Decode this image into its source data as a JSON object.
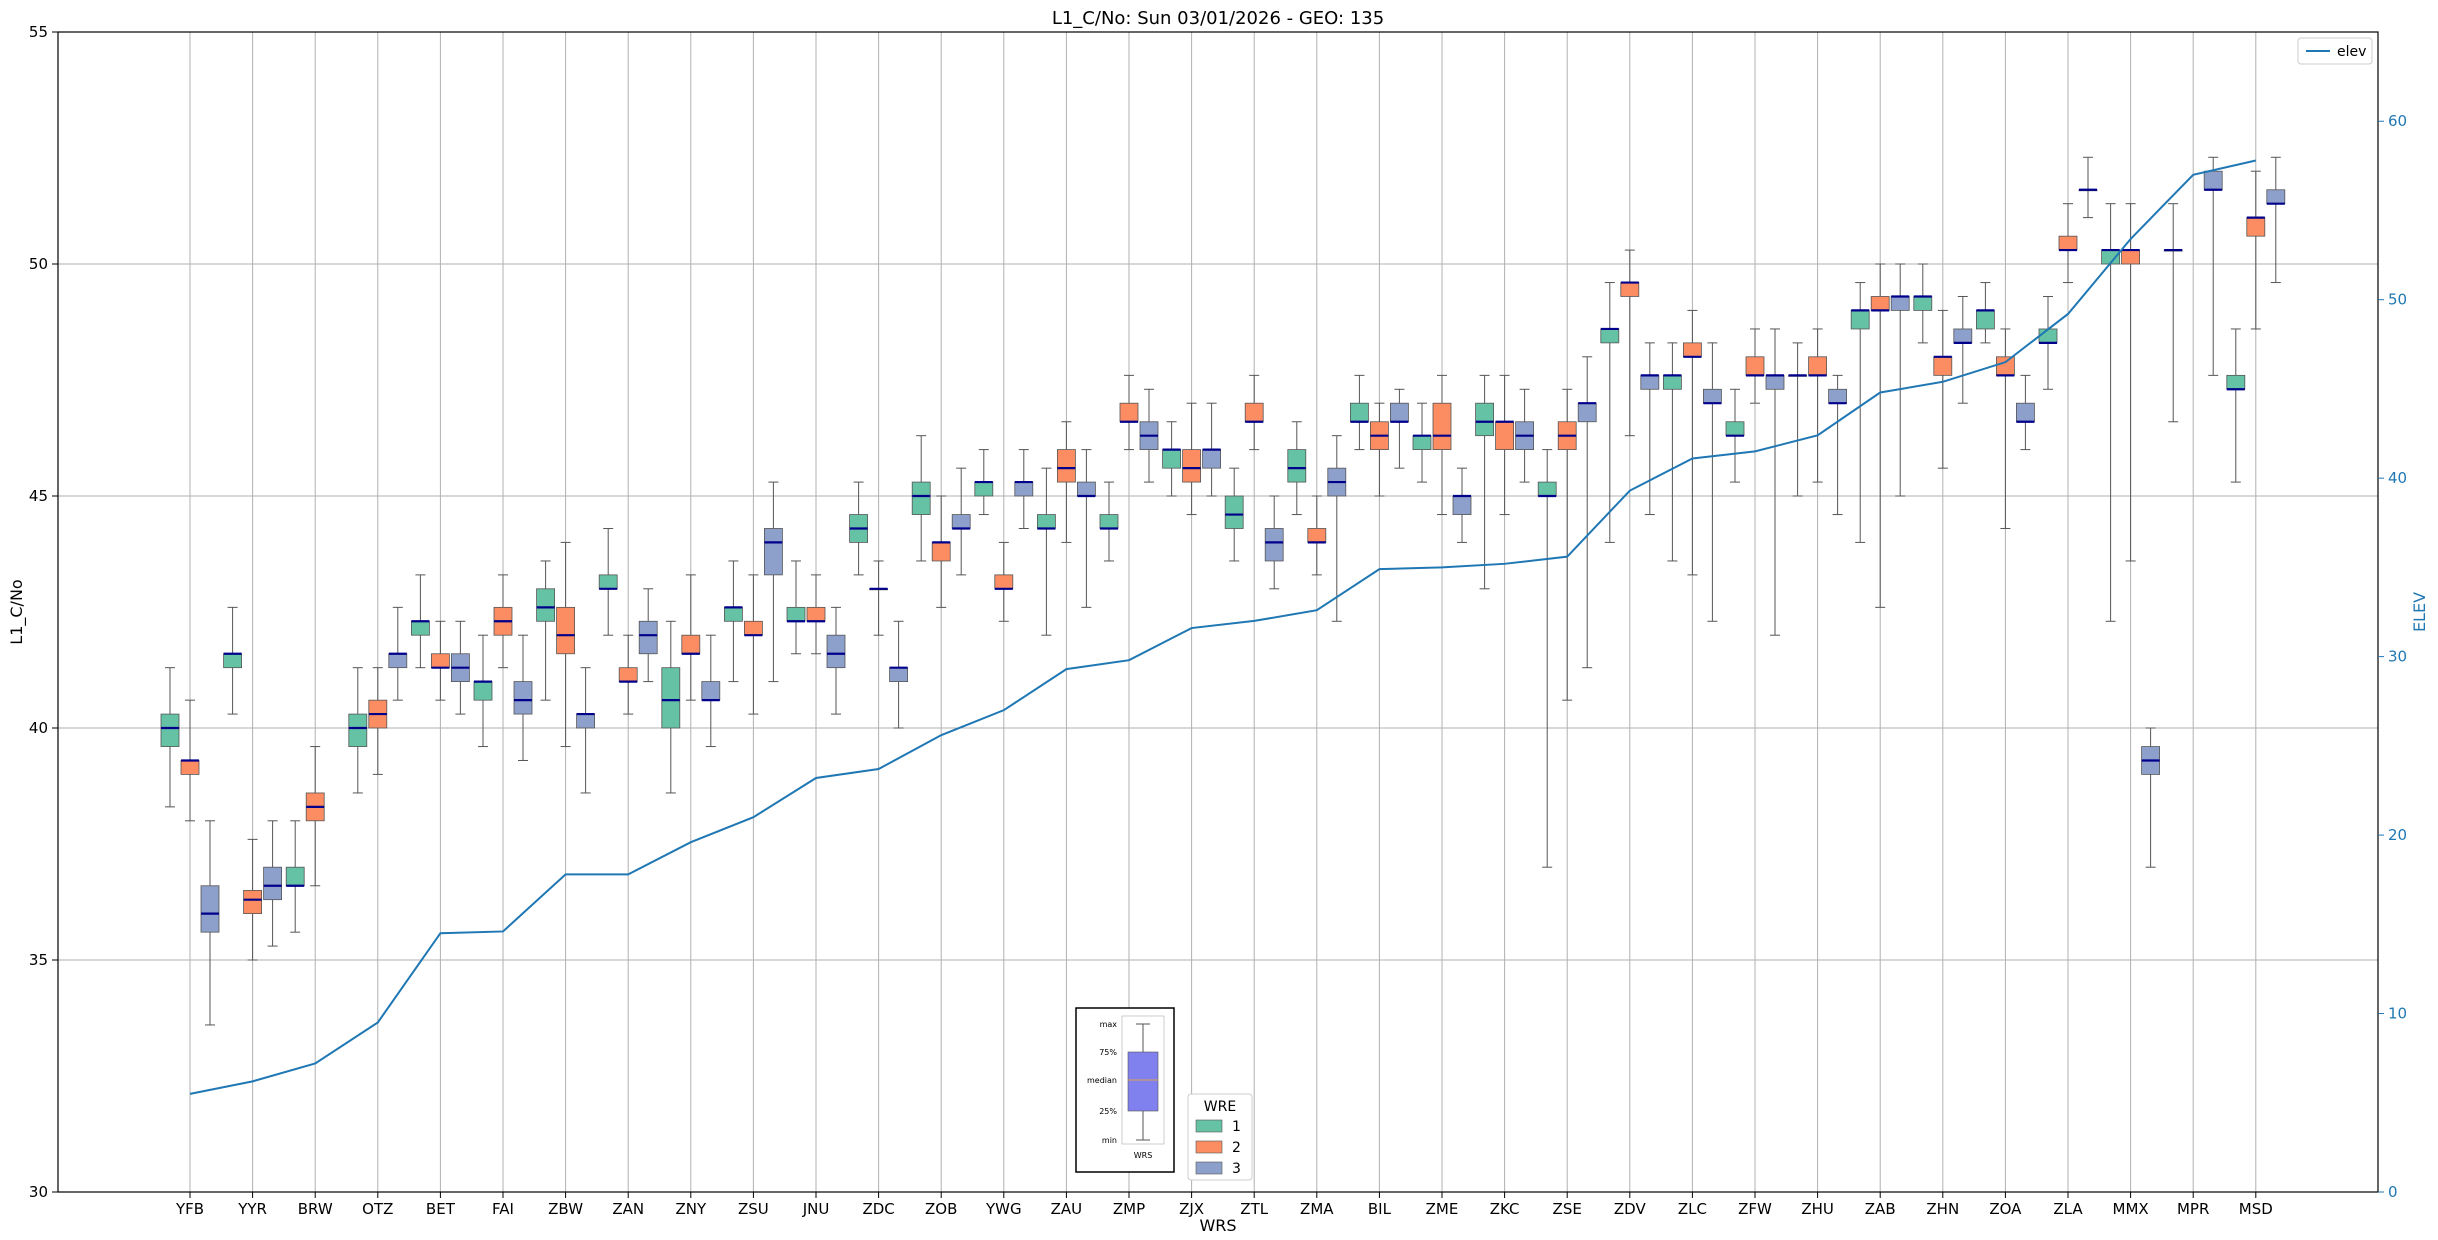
{
  "chart_data": {
    "type": "box",
    "title": "L1_C/No: Sun 03/01/2026 - GEO: 135",
    "xlabel": "WRS",
    "ylabel": "L1_C/No",
    "ylabel_right": "ELEV",
    "ylim": [
      30,
      55
    ],
    "ylim_right": [
      0,
      65
    ],
    "yticks": [
      30,
      35,
      40,
      45,
      50,
      55
    ],
    "yticks_right": [
      0,
      10,
      20,
      30,
      40,
      50,
      60
    ],
    "grid": true,
    "colors": {
      "1": "#66c2a5",
      "2": "#fc8d62",
      "3": "#8da0cb",
      "median": "#00008b",
      "elev": "#1f77b4"
    },
    "legend_line": {
      "label": "elev",
      "placement": "top-right"
    },
    "legend_boxes": {
      "title": "WRE",
      "entries": [
        "1",
        "2",
        "3"
      ],
      "placement": "lower-center"
    },
    "inset_labels": [
      "max",
      "75%",
      "median",
      "25%",
      "min",
      "WRS"
    ],
    "categories": [
      "YFB",
      "YYR",
      "BRW",
      "OTZ",
      "BET",
      "FAI",
      "ZBW",
      "ZAN",
      "ZNY",
      "ZSU",
      "JNU",
      "ZDC",
      "ZOB",
      "YWG",
      "ZAU",
      "ZMP",
      "ZJX",
      "ZTL",
      "ZMA",
      "BIL",
      "ZME",
      "ZKC",
      "ZSE",
      "ZDV",
      "ZLC",
      "ZFW",
      "ZHU",
      "ZAB",
      "ZHN",
      "ZOA",
      "ZLA",
      "MMX",
      "MPR",
      "MSD"
    ],
    "elev": [
      5.5,
      6.2,
      7.2,
      9.5,
      14.5,
      14.6,
      17.8,
      17.8,
      19.6,
      21.0,
      23.2,
      23.7,
      25.6,
      27.0,
      29.3,
      29.8,
      31.6,
      32.0,
      32.6,
      34.9,
      35.0,
      35.2,
      35.6,
      39.3,
      41.1,
      41.5,
      42.4,
      44.8,
      45.4,
      46.5,
      49.2,
      53.4,
      57.0,
      57.8
    ],
    "boxes": [
      {
        "station": "YFB",
        "wre": 1,
        "min": 38.3,
        "q1": 39.6,
        "median": 40.0,
        "q3": 40.3,
        "max": 41.3
      },
      {
        "station": "YFB",
        "wre": 2,
        "min": 38.0,
        "q1": 39.0,
        "median": 39.3,
        "q3": 39.3,
        "max": 40.6
      },
      {
        "station": "YFB",
        "wre": 3,
        "min": 33.6,
        "q1": 35.6,
        "median": 36.0,
        "q3": 36.6,
        "max": 38.0
      },
      {
        "station": "YYR",
        "wre": 1,
        "min": 40.3,
        "q1": 41.3,
        "median": 41.6,
        "q3": 41.6,
        "max": 42.6
      },
      {
        "station": "YYR",
        "wre": 2,
        "min": 35.0,
        "q1": 36.0,
        "median": 36.3,
        "q3": 36.5,
        "max": 37.6
      },
      {
        "station": "YYR",
        "wre": 3,
        "min": 35.3,
        "q1": 36.3,
        "median": 36.6,
        "q3": 37.0,
        "max": 38.0
      },
      {
        "station": "BRW",
        "wre": 1,
        "min": 35.6,
        "q1": 36.6,
        "median": 36.6,
        "q3": 37.0,
        "max": 38.0
      },
      {
        "station": "BRW",
        "wre": 2,
        "min": 36.6,
        "q1": 38.0,
        "median": 38.3,
        "q3": 38.6,
        "max": 39.6
      },
      {
        "station": "OTZ",
        "wre": 1,
        "min": 38.6,
        "q1": 39.6,
        "median": 40.0,
        "q3": 40.3,
        "max": 41.3
      },
      {
        "station": "OTZ",
        "wre": 2,
        "min": 39.0,
        "q1": 40.0,
        "median": 40.3,
        "q3": 40.6,
        "max": 41.3
      },
      {
        "station": "OTZ",
        "wre": 3,
        "min": 40.6,
        "q1": 41.3,
        "median": 41.6,
        "q3": 41.6,
        "max": 42.6
      },
      {
        "station": "BET",
        "wre": 1,
        "min": 41.3,
        "q1": 42.0,
        "median": 42.3,
        "q3": 42.3,
        "max": 43.3
      },
      {
        "station": "BET",
        "wre": 2,
        "min": 40.6,
        "q1": 41.3,
        "median": 41.3,
        "q3": 41.6,
        "max": 42.3
      },
      {
        "station": "BET",
        "wre": 3,
        "min": 40.3,
        "q1": 41.0,
        "median": 41.3,
        "q3": 41.6,
        "max": 42.3
      },
      {
        "station": "FAI",
        "wre": 1,
        "min": 39.6,
        "q1": 40.6,
        "median": 41.0,
        "q3": 41.0,
        "max": 42.0
      },
      {
        "station": "FAI",
        "wre": 2,
        "min": 41.3,
        "q1": 42.0,
        "median": 42.3,
        "q3": 42.6,
        "max": 43.3
      },
      {
        "station": "FAI",
        "wre": 3,
        "min": 39.3,
        "q1": 40.3,
        "median": 40.6,
        "q3": 41.0,
        "max": 42.0
      },
      {
        "station": "ZBW",
        "wre": 1,
        "min": 40.6,
        "q1": 42.3,
        "median": 42.6,
        "q3": 43.0,
        "max": 43.6
      },
      {
        "station": "ZBW",
        "wre": 2,
        "min": 39.6,
        "q1": 41.6,
        "median": 42.0,
        "q3": 42.6,
        "max": 44.0
      },
      {
        "station": "ZBW",
        "wre": 3,
        "min": 38.6,
        "q1": 40.0,
        "median": 40.3,
        "q3": 40.3,
        "max": 41.3
      },
      {
        "station": "ZAN",
        "wre": 1,
        "min": 42.0,
        "q1": 43.0,
        "median": 43.0,
        "q3": 43.3,
        "max": 44.3
      },
      {
        "station": "ZAN",
        "wre": 2,
        "min": 40.3,
        "q1": 41.0,
        "median": 41.0,
        "q3": 41.3,
        "max": 42.0
      },
      {
        "station": "ZAN",
        "wre": 3,
        "min": 41.0,
        "q1": 41.6,
        "median": 42.0,
        "q3": 42.3,
        "max": 43.0
      },
      {
        "station": "ZNY",
        "wre": 1,
        "min": 38.6,
        "q1": 40.0,
        "median": 40.6,
        "q3": 41.3,
        "max": 42.3
      },
      {
        "station": "ZNY",
        "wre": 2,
        "min": 40.6,
        "q1": 41.6,
        "median": 41.6,
        "q3": 42.0,
        "max": 43.3
      },
      {
        "station": "ZNY",
        "wre": 3,
        "min": 39.6,
        "q1": 40.6,
        "median": 40.6,
        "q3": 41.0,
        "max": 42.0
      },
      {
        "station": "ZSU",
        "wre": 1,
        "min": 41.0,
        "q1": 42.3,
        "median": 42.6,
        "q3": 42.6,
        "max": 43.6
      },
      {
        "station": "ZSU",
        "wre": 2,
        "min": 40.3,
        "q1": 42.0,
        "median": 42.0,
        "q3": 42.3,
        "max": 43.3
      },
      {
        "station": "ZSU",
        "wre": 3,
        "min": 41.0,
        "q1": 43.3,
        "median": 44.0,
        "q3": 44.3,
        "max": 45.3
      },
      {
        "station": "JNU",
        "wre": 1,
        "min": 41.6,
        "q1": 42.3,
        "median": 42.3,
        "q3": 42.6,
        "max": 43.6
      },
      {
        "station": "JNU",
        "wre": 2,
        "min": 41.6,
        "q1": 42.3,
        "median": 42.3,
        "q3": 42.6,
        "max": 43.3
      },
      {
        "station": "JNU",
        "wre": 3,
        "min": 40.3,
        "q1": 41.3,
        "median": 41.6,
        "q3": 42.0,
        "max": 42.6
      },
      {
        "station": "ZDC",
        "wre": 1,
        "min": 43.3,
        "q1": 44.0,
        "median": 44.3,
        "q3": 44.6,
        "max": 45.3
      },
      {
        "station": "ZDC",
        "wre": 2,
        "min": 42.0,
        "q1": 43.0,
        "median": 43.0,
        "q3": 43.0,
        "max": 43.6
      },
      {
        "station": "ZDC",
        "wre": 3,
        "min": 40.0,
        "q1": 41.0,
        "median": 41.3,
        "q3": 41.3,
        "max": 42.3
      },
      {
        "station": "ZOB",
        "wre": 1,
        "min": 43.6,
        "q1": 44.6,
        "median": 45.0,
        "q3": 45.3,
        "max": 46.3
      },
      {
        "station": "ZOB",
        "wre": 2,
        "min": 42.6,
        "q1": 43.6,
        "median": 44.0,
        "q3": 44.0,
        "max": 45.0
      },
      {
        "station": "ZOB",
        "wre": 3,
        "min": 43.3,
        "q1": 44.3,
        "median": 44.3,
        "q3": 44.6,
        "max": 45.6
      },
      {
        "station": "YWG",
        "wre": 1,
        "min": 44.6,
        "q1": 45.0,
        "median": 45.3,
        "q3": 45.3,
        "max": 46.0
      },
      {
        "station": "YWG",
        "wre": 2,
        "min": 42.3,
        "q1": 43.0,
        "median": 43.0,
        "q3": 43.3,
        "max": 44.0
      },
      {
        "station": "YWG",
        "wre": 3,
        "min": 44.3,
        "q1": 45.0,
        "median": 45.3,
        "q3": 45.3,
        "max": 46.0
      },
      {
        "station": "ZAU",
        "wre": 1,
        "min": 42.0,
        "q1": 44.3,
        "median": 44.3,
        "q3": 44.6,
        "max": 45.6
      },
      {
        "station": "ZAU",
        "wre": 2,
        "min": 44.0,
        "q1": 45.3,
        "median": 45.6,
        "q3": 46.0,
        "max": 46.6
      },
      {
        "station": "ZAU",
        "wre": 3,
        "min": 42.6,
        "q1": 45.0,
        "median": 45.0,
        "q3": 45.3,
        "max": 46.0
      },
      {
        "station": "ZMP",
        "wre": 1,
        "min": 43.6,
        "q1": 44.3,
        "median": 44.3,
        "q3": 44.6,
        "max": 45.3
      },
      {
        "station": "ZMP",
        "wre": 2,
        "min": 46.0,
        "q1": 46.6,
        "median": 46.6,
        "q3": 47.0,
        "max": 47.6
      },
      {
        "station": "ZMP",
        "wre": 3,
        "min": 45.3,
        "q1": 46.0,
        "median": 46.3,
        "q3": 46.6,
        "max": 47.3
      },
      {
        "station": "ZJX",
        "wre": 1,
        "min": 45.0,
        "q1": 45.6,
        "median": 46.0,
        "q3": 46.0,
        "max": 46.6
      },
      {
        "station": "ZJX",
        "wre": 2,
        "min": 44.6,
        "q1": 45.3,
        "median": 45.6,
        "q3": 46.0,
        "max": 47.0
      },
      {
        "station": "ZJX",
        "wre": 3,
        "min": 45.0,
        "q1": 45.6,
        "median": 46.0,
        "q3": 46.0,
        "max": 47.0
      },
      {
        "station": "ZTL",
        "wre": 1,
        "min": 43.6,
        "q1": 44.3,
        "median": 44.6,
        "q3": 45.0,
        "max": 45.6
      },
      {
        "station": "ZTL",
        "wre": 2,
        "min": 46.0,
        "q1": 46.6,
        "median": 46.6,
        "q3": 47.0,
        "max": 47.6
      },
      {
        "station": "ZTL",
        "wre": 3,
        "min": 43.0,
        "q1": 43.6,
        "median": 44.0,
        "q3": 44.3,
        "max": 45.0
      },
      {
        "station": "ZMA",
        "wre": 1,
        "min": 44.6,
        "q1": 45.3,
        "median": 45.6,
        "q3": 46.0,
        "max": 46.6
      },
      {
        "station": "ZMA",
        "wre": 2,
        "min": 43.3,
        "q1": 44.0,
        "median": 44.0,
        "q3": 44.3,
        "max": 45.0
      },
      {
        "station": "ZMA",
        "wre": 3,
        "min": 42.3,
        "q1": 45.0,
        "median": 45.3,
        "q3": 45.6,
        "max": 46.3
      },
      {
        "station": "BIL",
        "wre": 1,
        "min": 46.0,
        "q1": 46.6,
        "median": 46.6,
        "q3": 47.0,
        "max": 47.6
      },
      {
        "station": "BIL",
        "wre": 2,
        "min": 45.0,
        "q1": 46.0,
        "median": 46.3,
        "q3": 46.6,
        "max": 47.0
      },
      {
        "station": "BIL",
        "wre": 3,
        "min": 45.6,
        "q1": 46.6,
        "median": 46.6,
        "q3": 47.0,
        "max": 47.3
      },
      {
        "station": "ZME",
        "wre": 1,
        "min": 45.3,
        "q1": 46.0,
        "median": 46.3,
        "q3": 46.3,
        "max": 47.0
      },
      {
        "station": "ZME",
        "wre": 2,
        "min": 44.6,
        "q1": 46.0,
        "median": 46.3,
        "q3": 47.0,
        "max": 47.6
      },
      {
        "station": "ZME",
        "wre": 3,
        "min": 44.0,
        "q1": 44.6,
        "median": 45.0,
        "q3": 45.0,
        "max": 45.6
      },
      {
        "station": "ZKC",
        "wre": 1,
        "min": 43.0,
        "q1": 46.3,
        "median": 46.6,
        "q3": 47.0,
        "max": 47.6
      },
      {
        "station": "ZKC",
        "wre": 2,
        "min": 44.6,
        "q1": 46.0,
        "median": 46.6,
        "q3": 46.6,
        "max": 47.6
      },
      {
        "station": "ZKC",
        "wre": 3,
        "min": 45.3,
        "q1": 46.0,
        "median": 46.3,
        "q3": 46.6,
        "max": 47.3
      },
      {
        "station": "ZSE",
        "wre": 1,
        "min": 37.0,
        "q1": 45.0,
        "median": 45.0,
        "q3": 45.3,
        "max": 46.0
      },
      {
        "station": "ZSE",
        "wre": 2,
        "min": 40.6,
        "q1": 46.0,
        "median": 46.3,
        "q3": 46.6,
        "max": 47.3
      },
      {
        "station": "ZSE",
        "wre": 3,
        "min": 41.3,
        "q1": 46.6,
        "median": 47.0,
        "q3": 47.0,
        "max": 48.0
      },
      {
        "station": "ZDV",
        "wre": 1,
        "min": 44.0,
        "q1": 48.3,
        "median": 48.6,
        "q3": 48.6,
        "max": 49.6
      },
      {
        "station": "ZDV",
        "wre": 2,
        "min": 46.3,
        "q1": 49.3,
        "median": 49.6,
        "q3": 49.6,
        "max": 50.3
      },
      {
        "station": "ZDV",
        "wre": 3,
        "min": 44.6,
        "q1": 47.3,
        "median": 47.6,
        "q3": 47.6,
        "max": 48.3
      },
      {
        "station": "ZLC",
        "wre": 1,
        "min": 43.6,
        "q1": 47.3,
        "median": 47.6,
        "q3": 47.6,
        "max": 48.3
      },
      {
        "station": "ZLC",
        "wre": 2,
        "min": 43.3,
        "q1": 48.0,
        "median": 48.0,
        "q3": 48.3,
        "max": 49.0
      },
      {
        "station": "ZLC",
        "wre": 3,
        "min": 42.3,
        "q1": 47.0,
        "median": 47.0,
        "q3": 47.3,
        "max": 48.3
      },
      {
        "station": "ZFW",
        "wre": 1,
        "min": 45.3,
        "q1": 46.3,
        "median": 46.3,
        "q3": 46.6,
        "max": 47.3
      },
      {
        "station": "ZFW",
        "wre": 2,
        "min": 47.0,
        "q1": 47.6,
        "median": 47.6,
        "q3": 48.0,
        "max": 48.6
      },
      {
        "station": "ZFW",
        "wre": 3,
        "min": 42.0,
        "q1": 47.3,
        "median": 47.6,
        "q3": 47.6,
        "max": 48.6
      },
      {
        "station": "ZHU",
        "wre": 1,
        "min": 45.0,
        "q1": 47.6,
        "median": 47.6,
        "q3": 47.6,
        "max": 48.3
      },
      {
        "station": "ZHU",
        "wre": 2,
        "min": 45.3,
        "q1": 47.6,
        "median": 47.6,
        "q3": 48.0,
        "max": 48.6
      },
      {
        "station": "ZHU",
        "wre": 3,
        "min": 44.6,
        "q1": 47.0,
        "median": 47.0,
        "q3": 47.3,
        "max": 47.6
      },
      {
        "station": "ZAB",
        "wre": 1,
        "min": 44.0,
        "q1": 48.6,
        "median": 49.0,
        "q3": 49.0,
        "max": 49.6
      },
      {
        "station": "ZAB",
        "wre": 2,
        "min": 42.6,
        "q1": 49.0,
        "median": 49.0,
        "q3": 49.3,
        "max": 50.0
      },
      {
        "station": "ZAB",
        "wre": 3,
        "min": 45.0,
        "q1": 49.0,
        "median": 49.3,
        "q3": 49.3,
        "max": 50.0
      },
      {
        "station": "ZHN",
        "wre": 1,
        "min": 48.3,
        "q1": 49.0,
        "median": 49.3,
        "q3": 49.3,
        "max": 50.0
      },
      {
        "station": "ZHN",
        "wre": 2,
        "min": 45.6,
        "q1": 47.6,
        "median": 48.0,
        "q3": 48.0,
        "max": 49.0
      },
      {
        "station": "ZHN",
        "wre": 3,
        "min": 47.0,
        "q1": 48.3,
        "median": 48.3,
        "q3": 48.6,
        "max": 49.3
      },
      {
        "station": "ZOA",
        "wre": 1,
        "min": 48.3,
        "q1": 48.6,
        "median": 49.0,
        "q3": 49.0,
        "max": 49.6
      },
      {
        "station": "ZOA",
        "wre": 2,
        "min": 44.3,
        "q1": 47.6,
        "median": 47.6,
        "q3": 48.0,
        "max": 48.6
      },
      {
        "station": "ZOA",
        "wre": 3,
        "min": 46.0,
        "q1": 46.6,
        "median": 46.6,
        "q3": 47.0,
        "max": 47.6
      },
      {
        "station": "ZLA",
        "wre": 1,
        "min": 47.3,
        "q1": 48.3,
        "median": 48.3,
        "q3": 48.6,
        "max": 49.3
      },
      {
        "station": "ZLA",
        "wre": 2,
        "min": 49.6,
        "q1": 50.3,
        "median": 50.3,
        "q3": 50.6,
        "max": 51.3
      },
      {
        "station": "ZLA",
        "wre": 3,
        "min": 51.0,
        "q1": 51.6,
        "median": 51.6,
        "q3": 51.6,
        "max": 52.3
      },
      {
        "station": "MMX",
        "wre": 1,
        "min": 42.3,
        "q1": 50.0,
        "median": 50.3,
        "q3": 50.3,
        "max": 51.3
      },
      {
        "station": "MMX",
        "wre": 2,
        "min": 43.6,
        "q1": 50.0,
        "median": 50.3,
        "q3": 50.3,
        "max": 51.3
      },
      {
        "station": "MMX",
        "wre": 3,
        "min": 37.0,
        "q1": 39.0,
        "median": 39.3,
        "q3": 39.6,
        "max": 40.0
      },
      {
        "station": "MPR",
        "wre": 1,
        "min": 46.6,
        "q1": 50.3,
        "median": 50.3,
        "q3": 50.3,
        "max": 51.3
      },
      {
        "station": "MPR",
        "wre": 3,
        "min": 47.6,
        "q1": 51.6,
        "median": 51.6,
        "q3": 52.0,
        "max": 52.3
      },
      {
        "station": "MSD",
        "wre": 1,
        "min": 45.3,
        "q1": 47.3,
        "median": 47.3,
        "q3": 47.6,
        "max": 48.6
      },
      {
        "station": "MSD",
        "wre": 2,
        "min": 48.6,
        "q1": 50.6,
        "median": 51.0,
        "q3": 51.0,
        "max": 52.0
      },
      {
        "station": "MSD",
        "wre": 3,
        "min": 49.6,
        "q1": 51.3,
        "median": 51.3,
        "q3": 51.6,
        "max": 52.3
      }
    ]
  }
}
